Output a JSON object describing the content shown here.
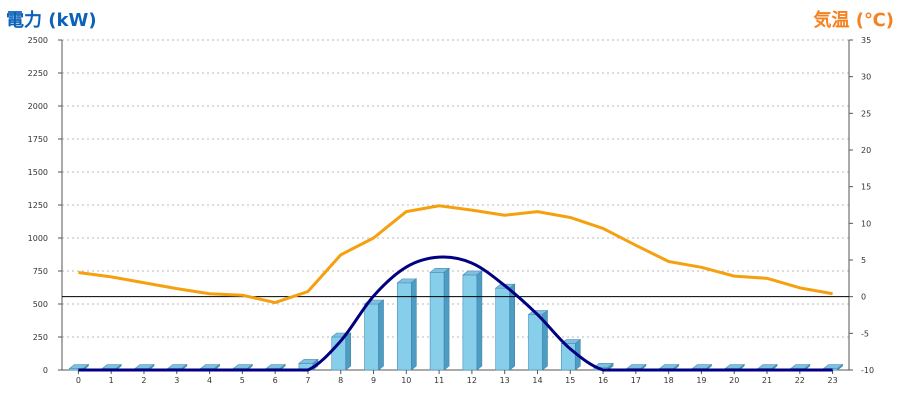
{
  "chart_data": {
    "type": "bar+line",
    "left_axis_title": "電力 (kW)",
    "right_axis_title": "気温 (℃)",
    "left_axis": {
      "ylim": [
        0,
        2500
      ],
      "ticks": [
        0,
        250,
        500,
        750,
        1000,
        1250,
        1500,
        1750,
        2000,
        2250,
        2500
      ],
      "color": "#0b62b8"
    },
    "right_axis": {
      "ylim": [
        -10,
        35
      ],
      "ticks": [
        -10,
        -5,
        0,
        5,
        10,
        15,
        20,
        25,
        30,
        35
      ],
      "color": "#f58220"
    },
    "grid": true,
    "categories": [
      "0",
      "1",
      "2",
      "3",
      "4",
      "5",
      "6",
      "7",
      "8",
      "9",
      "10",
      "11",
      "12",
      "13",
      "14",
      "15",
      "16",
      "17",
      "18",
      "19",
      "20",
      "21",
      "22",
      "23"
    ],
    "series": [
      {
        "type": "bar3d",
        "axis": "left",
        "color": "#87ceeb",
        "values": [
          0,
          0,
          0,
          0,
          0,
          0,
          0,
          50,
          250,
          500,
          660,
          740,
          720,
          620,
          420,
          200,
          20,
          0,
          0,
          0,
          0,
          0,
          0,
          0
        ]
      },
      {
        "type": "smooth-line",
        "axis": "left",
        "color": "#000080",
        "values": [
          0,
          0,
          0,
          0,
          0,
          0,
          0,
          0,
          220,
          560,
          780,
          855,
          810,
          640,
          420,
          160,
          0,
          0,
          0,
          0,
          0,
          0,
          0,
          0
        ]
      },
      {
        "type": "line",
        "axis": "right",
        "color": "#f5a00f",
        "values": [
          3.3,
          2.7,
          1.9,
          1.1,
          0.4,
          0.2,
          -0.8,
          0.7,
          5.7,
          8.0,
          11.6,
          12.4,
          11.8,
          11.1,
          11.6,
          10.8,
          9.3,
          7.0,
          4.8,
          4.0,
          2.8,
          2.5,
          1.2,
          0.4
        ]
      }
    ],
    "reference_line": {
      "axis": "right",
      "value": 0,
      "color": "#000000"
    }
  }
}
